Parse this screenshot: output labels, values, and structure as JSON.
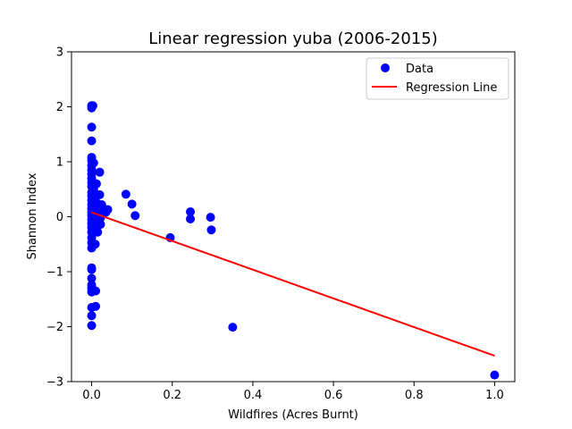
{
  "chart_data": {
    "type": "scatter",
    "title": "Linear regression yuba (2006-2015)",
    "xlabel": "Wildfires (Acres Burnt)",
    "ylabel": "Shannon Index",
    "xlim": [
      -0.05,
      1.05
    ],
    "ylim": [
      -3,
      3
    ],
    "xticks": [
      0.0,
      0.2,
      0.4,
      0.6,
      0.8,
      1.0
    ],
    "xtick_labels": [
      "0.0",
      "0.2",
      "0.4",
      "0.6",
      "0.8",
      "1.0"
    ],
    "yticks": [
      -3,
      -2,
      -1,
      0,
      1,
      2,
      3
    ],
    "ytick_labels": [
      "−3",
      "−2",
      "−1",
      "0",
      "1",
      "2",
      "3"
    ],
    "grid": false,
    "legend_position": "top-right",
    "series": [
      {
        "name": "Data",
        "kind": "scatter",
        "color": "#0000ff",
        "points": [
          [
            0.0,
            2.02
          ],
          [
            0.0,
            1.98
          ],
          [
            0.0,
            1.63
          ],
          [
            0.0,
            1.38
          ],
          [
            0.0,
            1.08
          ],
          [
            0.0,
            1.02
          ],
          [
            0.0,
            0.93
          ],
          [
            0.0,
            0.85
          ],
          [
            0.0,
            0.78
          ],
          [
            0.0,
            0.7
          ],
          [
            0.0,
            0.62
          ],
          [
            0.0,
            0.55
          ],
          [
            0.0,
            0.44
          ],
          [
            0.0,
            0.38
          ],
          [
            0.0,
            0.3
          ],
          [
            0.0,
            0.22
          ],
          [
            0.0,
            0.15
          ],
          [
            0.0,
            0.08
          ],
          [
            0.0,
            0.02
          ],
          [
            0.0,
            -0.05
          ],
          [
            0.0,
            -0.12
          ],
          [
            0.0,
            -0.2
          ],
          [
            0.0,
            -0.28
          ],
          [
            0.0,
            -0.38
          ],
          [
            0.0,
            -0.47
          ],
          [
            0.0,
            -0.57
          ],
          [
            0.0,
            -0.93
          ],
          [
            0.0,
            -0.96
          ],
          [
            0.0,
            -1.12
          ],
          [
            0.0,
            -1.24
          ],
          [
            0.0,
            -1.3
          ],
          [
            0.0,
            -1.37
          ],
          [
            0.0,
            -1.65
          ],
          [
            0.0,
            -1.8
          ],
          [
            0.0,
            -1.98
          ],
          [
            0.003,
            2.02
          ],
          [
            0.005,
            0.98
          ],
          [
            0.005,
            0.5
          ],
          [
            0.006,
            0.35
          ],
          [
            0.007,
            0.12
          ],
          [
            0.008,
            -0.1
          ],
          [
            0.008,
            -0.25
          ],
          [
            0.009,
            -0.5
          ],
          [
            0.01,
            -1.35
          ],
          [
            0.01,
            -1.63
          ],
          [
            0.012,
            0.6
          ],
          [
            0.013,
            0.25
          ],
          [
            0.014,
            0.05
          ],
          [
            0.015,
            -0.28
          ],
          [
            0.02,
            0.81
          ],
          [
            0.02,
            0.4
          ],
          [
            0.021,
            0.2
          ],
          [
            0.022,
            -0.02
          ],
          [
            0.022,
            -0.14
          ],
          [
            0.025,
            0.22
          ],
          [
            0.028,
            0.1
          ],
          [
            0.035,
            0.08
          ],
          [
            0.04,
            0.13
          ],
          [
            0.085,
            0.41
          ],
          [
            0.1,
            0.23
          ],
          [
            0.108,
            0.02
          ],
          [
            0.195,
            -0.38
          ],
          [
            0.245,
            0.09
          ],
          [
            0.245,
            -0.04
          ],
          [
            0.295,
            -0.01
          ],
          [
            0.297,
            -0.24
          ],
          [
            0.35,
            -2.01
          ],
          [
            1.0,
            -2.88
          ]
        ]
      },
      {
        "name": "Regression Line",
        "kind": "line",
        "color": "#ff0000",
        "x": [
          0.0,
          1.0
        ],
        "y": [
          0.08,
          -2.53
        ]
      }
    ]
  }
}
